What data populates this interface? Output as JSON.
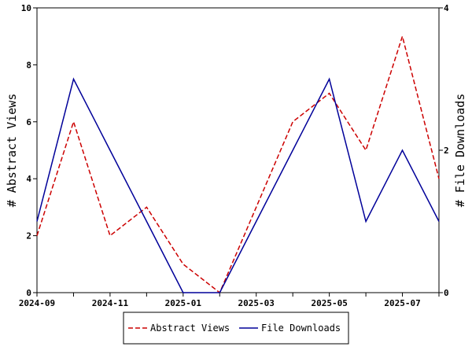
{
  "chart_data": {
    "type": "line",
    "x": [
      "2024-09",
      "2024-10",
      "2024-11",
      "2024-12",
      "2025-01",
      "2025-02",
      "2025-03",
      "2025-04",
      "2025-05",
      "2025-06",
      "2025-07",
      "2025-08"
    ],
    "x_tick_labels": [
      "2024-09",
      "2024-11",
      "2025-01",
      "2025-03",
      "2025-05",
      "2025-07"
    ],
    "ylabel": "# Abstract Views",
    "y2label": "# File Downloads",
    "ylim": [
      0,
      10
    ],
    "y2lim": [
      0,
      4
    ],
    "y_ticks": [
      0,
      2,
      4,
      6,
      8,
      10
    ],
    "y2_ticks": [
      0,
      2,
      4
    ],
    "grid": false,
    "legend_position": "bottom-center",
    "series": [
      {
        "name": "Abstract Views",
        "axis": "left",
        "color": "#cc0000",
        "style": "dashed",
        "values": [
          2,
          6,
          2,
          3,
          1,
          0,
          3,
          6,
          7,
          5,
          9,
          4
        ]
      },
      {
        "name": "File Downloads",
        "axis": "right",
        "color": "#000099",
        "style": "solid",
        "values": [
          1,
          3,
          2,
          1,
          0,
          0,
          1,
          2,
          3,
          1,
          2,
          1
        ]
      }
    ]
  }
}
